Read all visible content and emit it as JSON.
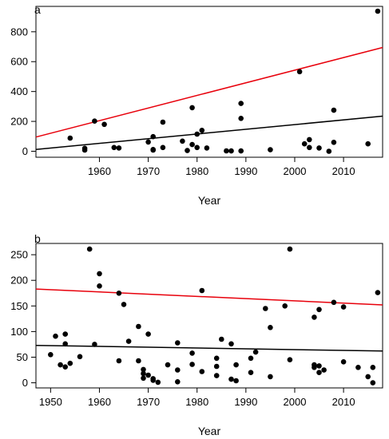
{
  "chart_data": [
    {
      "type": "scatter",
      "panel_label": "a",
      "title": "",
      "xlabel": "Year",
      "ylabel": "",
      "xlim": [
        1947,
        2018
      ],
      "ylim": [
        -40,
        970
      ],
      "x_ticks": [
        1960,
        1970,
        1980,
        1990,
        2000,
        2010
      ],
      "y_ticks": [
        0,
        200,
        400,
        600,
        800
      ],
      "grid": false,
      "points": [
        {
          "x": 1954,
          "y": 88
        },
        {
          "x": 1957,
          "y": 20
        },
        {
          "x": 1957,
          "y": 8
        },
        {
          "x": 1959,
          "y": 202
        },
        {
          "x": 1961,
          "y": 180
        },
        {
          "x": 1963,
          "y": 25
        },
        {
          "x": 1964,
          "y": 22
        },
        {
          "x": 1970,
          "y": 62
        },
        {
          "x": 1971,
          "y": 98
        },
        {
          "x": 1971,
          "y": 8
        },
        {
          "x": 1971,
          "y": 12
        },
        {
          "x": 1973,
          "y": 195
        },
        {
          "x": 1973,
          "y": 25
        },
        {
          "x": 1977,
          "y": 68
        },
        {
          "x": 1978,
          "y": 5
        },
        {
          "x": 1979,
          "y": 292
        },
        {
          "x": 1979,
          "y": 45
        },
        {
          "x": 1980,
          "y": 115
        },
        {
          "x": 1980,
          "y": 25
        },
        {
          "x": 1981,
          "y": 140
        },
        {
          "x": 1982,
          "y": 22
        },
        {
          "x": 1986,
          "y": 3
        },
        {
          "x": 1987,
          "y": 2
        },
        {
          "x": 1989,
          "y": 320
        },
        {
          "x": 1989,
          "y": 220
        },
        {
          "x": 1989,
          "y": 2
        },
        {
          "x": 1995,
          "y": 10
        },
        {
          "x": 2001,
          "y": 533
        },
        {
          "x": 2002,
          "y": 50
        },
        {
          "x": 2003,
          "y": 78
        },
        {
          "x": 2003,
          "y": 25
        },
        {
          "x": 2005,
          "y": 22
        },
        {
          "x": 2007,
          "y": 0
        },
        {
          "x": 2008,
          "y": 275
        },
        {
          "x": 2008,
          "y": 60
        },
        {
          "x": 2015,
          "y": 50
        },
        {
          "x": 2017,
          "y": 938
        }
      ],
      "lines": [
        {
          "color": "#e8000b",
          "x": [
            1947,
            2018
          ],
          "y": [
            95,
            695
          ]
        },
        {
          "color": "#000000",
          "x": [
            1947,
            2018
          ],
          "y": [
            12,
            235
          ]
        }
      ]
    },
    {
      "type": "scatter",
      "panel_label": "b",
      "title": "",
      "xlabel": "Year",
      "ylabel": "",
      "xlim": [
        1947,
        2018
      ],
      "ylim": [
        -10,
        272
      ],
      "x_ticks": [
        1950,
        1960,
        1970,
        1980,
        1990,
        2000,
        2010
      ],
      "y_ticks": [
        0,
        50,
        100,
        150,
        200,
        250
      ],
      "grid": false,
      "points": [
        {
          "x": 1950,
          "y": 55
        },
        {
          "x": 1951,
          "y": 91
        },
        {
          "x": 1952,
          "y": 35
        },
        {
          "x": 1953,
          "y": 95
        },
        {
          "x": 1953,
          "y": 76
        },
        {
          "x": 1953,
          "y": 31
        },
        {
          "x": 1954,
          "y": 38
        },
        {
          "x": 1956,
          "y": 51
        },
        {
          "x": 1958,
          "y": 261
        },
        {
          "x": 1959,
          "y": 75
        },
        {
          "x": 1960,
          "y": 213
        },
        {
          "x": 1960,
          "y": 189
        },
        {
          "x": 1964,
          "y": 175
        },
        {
          "x": 1964,
          "y": 43
        },
        {
          "x": 1965,
          "y": 153
        },
        {
          "x": 1966,
          "y": 81
        },
        {
          "x": 1968,
          "y": 110
        },
        {
          "x": 1968,
          "y": 43
        },
        {
          "x": 1969,
          "y": 26
        },
        {
          "x": 1969,
          "y": 18
        },
        {
          "x": 1969,
          "y": 9
        },
        {
          "x": 1970,
          "y": 95
        },
        {
          "x": 1970,
          "y": 15
        },
        {
          "x": 1971,
          "y": 5
        },
        {
          "x": 1971,
          "y": 8
        },
        {
          "x": 1972,
          "y": 1
        },
        {
          "x": 1974,
          "y": 35
        },
        {
          "x": 1976,
          "y": 78
        },
        {
          "x": 1976,
          "y": 25
        },
        {
          "x": 1976,
          "y": 2
        },
        {
          "x": 1979,
          "y": 58
        },
        {
          "x": 1979,
          "y": 36
        },
        {
          "x": 1981,
          "y": 180
        },
        {
          "x": 1981,
          "y": 22
        },
        {
          "x": 1984,
          "y": 48
        },
        {
          "x": 1984,
          "y": 32
        },
        {
          "x": 1984,
          "y": 14
        },
        {
          "x": 1985,
          "y": 85
        },
        {
          "x": 1987,
          "y": 76
        },
        {
          "x": 1987,
          "y": 7
        },
        {
          "x": 1988,
          "y": 35
        },
        {
          "x": 1988,
          "y": 4
        },
        {
          "x": 1991,
          "y": 20
        },
        {
          "x": 1991,
          "y": 48
        },
        {
          "x": 1992,
          "y": 60
        },
        {
          "x": 1994,
          "y": 145
        },
        {
          "x": 1995,
          "y": 108
        },
        {
          "x": 1995,
          "y": 12
        },
        {
          "x": 1998,
          "y": 150
        },
        {
          "x": 1999,
          "y": 261
        },
        {
          "x": 1999,
          "y": 45
        },
        {
          "x": 2004,
          "y": 128
        },
        {
          "x": 2004,
          "y": 35
        },
        {
          "x": 2004,
          "y": 30
        },
        {
          "x": 2005,
          "y": 143
        },
        {
          "x": 2005,
          "y": 33
        },
        {
          "x": 2005,
          "y": 20
        },
        {
          "x": 2006,
          "y": 25
        },
        {
          "x": 2008,
          "y": 157
        },
        {
          "x": 2010,
          "y": 148
        },
        {
          "x": 2010,
          "y": 41
        },
        {
          "x": 2013,
          "y": 30
        },
        {
          "x": 2015,
          "y": 12
        },
        {
          "x": 2016,
          "y": 30
        },
        {
          "x": 2016,
          "y": 0
        },
        {
          "x": 2017,
          "y": 176
        }
      ],
      "lines": [
        {
          "color": "#e8000b",
          "x": [
            1947,
            2018
          ],
          "y": [
            183,
            152
          ]
        },
        {
          "color": "#000000",
          "x": [
            1947,
            2018
          ],
          "y": [
            73,
            62
          ]
        }
      ]
    }
  ]
}
